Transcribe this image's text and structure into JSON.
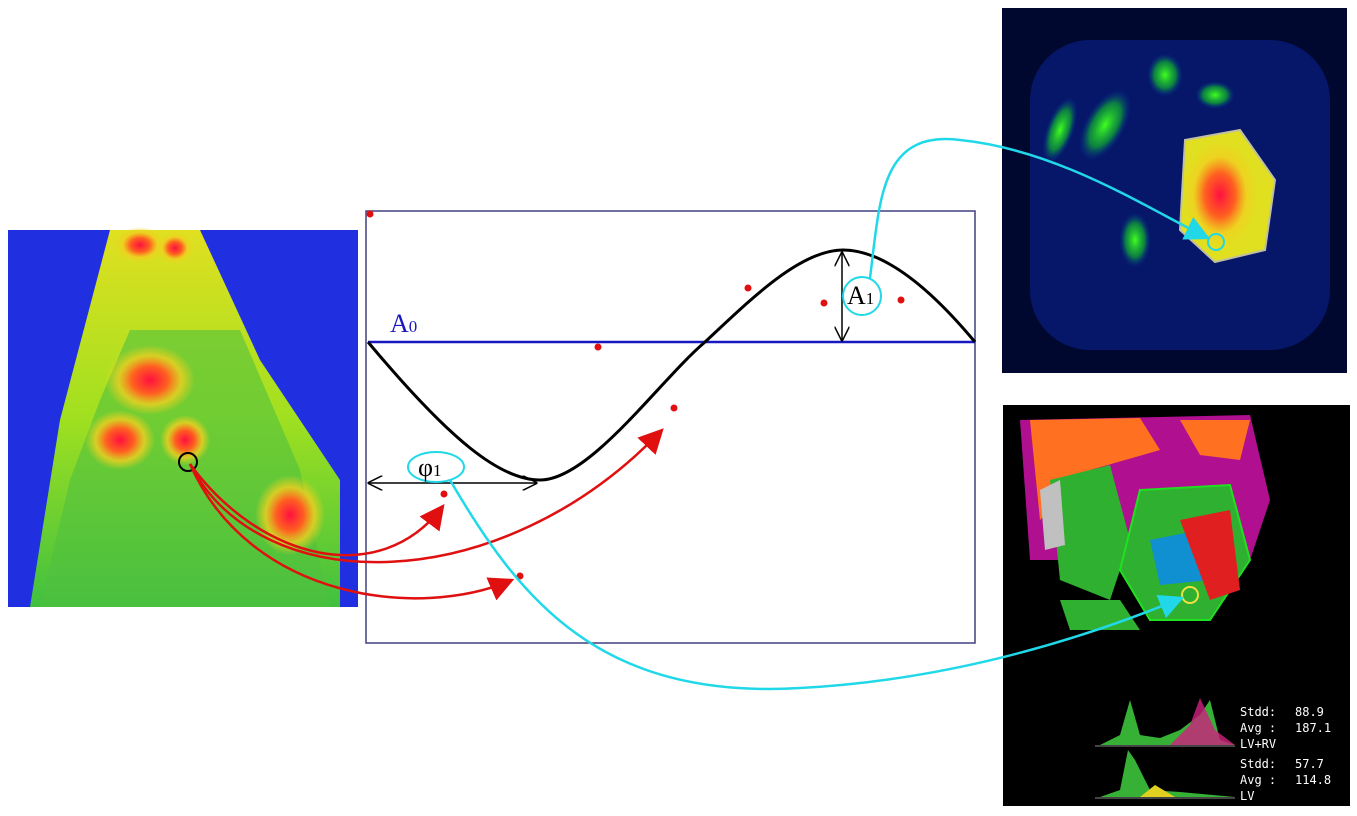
{
  "labels": {
    "baseline": {
      "main": "A",
      "sub": "0"
    },
    "amplitude": {
      "main": "A",
      "sub": "1"
    },
    "phase": {
      "main": "φ",
      "sub": "1"
    }
  },
  "stats": [
    {
      "stdd_label": "Stdd:",
      "stdd": 88.9,
      "avg_label": "Avg :",
      "avg": 187.1,
      "region": "LV+RV"
    },
    {
      "stdd_label": "Stdd:",
      "stdd": 57.7,
      "avg_label": "Avg :",
      "avg": 114.8,
      "region": "LV"
    }
  ]
}
